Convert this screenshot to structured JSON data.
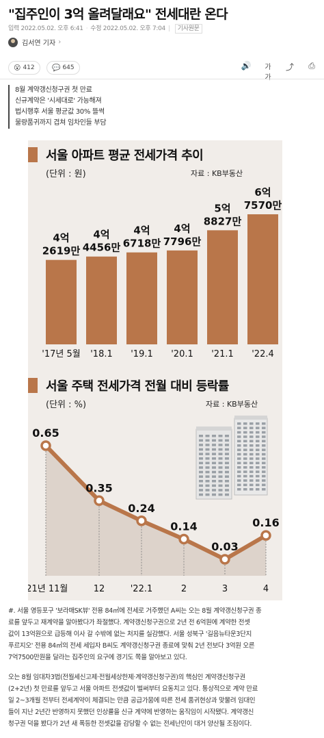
{
  "article": {
    "title": "\"집주인이 3억 올려달래요\" 전세대란 온다",
    "meta": {
      "published": "입력 2022.05.02. 오후 6:41",
      "modified": "수정 2022.05.02. 오후 7:04",
      "tag": "기사원문"
    },
    "reporter": "김서연 기자"
  },
  "actions": {
    "reaction_count": "412",
    "comment_count": "645",
    "icons": [
      "audio-icon",
      "font-size-icon",
      "share-icon",
      "print-icon"
    ],
    "font_size_label": "가가"
  },
  "summary": [
    "8월 계약갱신청구권 첫 만료",
    "신규계약은 '시세대로' 가능해져",
    "법시행후 서울 평균값 30% 뜰썩",
    "물량품귀까지 겹쳐 임차인들 부담"
  ],
  "chart1": {
    "title": "서울 아파트 평균 전세가격 추이",
    "unit": "(단위 : 원)",
    "source": "자료 : KB부동산",
    "bar_color": "#b9764a",
    "chart_data": {
      "type": "bar",
      "categories": [
        "'17년 5월",
        "'18.1",
        "'19.1",
        "'20.1",
        "'21.1",
        "'22.4"
      ],
      "values": [
        426190000,
        444560000,
        467180000,
        477960000,
        588270000,
        675700000
      ],
      "labels_line1": [
        "4억",
        "4억",
        "4억",
        "4억",
        "5억",
        "6억"
      ],
      "labels_line2": [
        "2619만",
        "4456만",
        "6718만",
        "7796만",
        "8827만",
        "7570만"
      ]
    }
  },
  "chart2": {
    "title": "서울 주택 전세가격 전월 대비 등락률",
    "unit": "(단위 : %)",
    "source": "자료 : KB부동산",
    "line_color": "#b9764a",
    "chart_data": {
      "type": "line",
      "categories": [
        "'21년 11월",
        "12",
        "'22.1",
        "2",
        "3",
        "4"
      ],
      "values": [
        0.65,
        0.35,
        0.24,
        0.14,
        0.03,
        0.16
      ],
      "labels": [
        "0.65",
        "0.35",
        "0.24",
        "0.14",
        "0.03",
        "0.16"
      ]
    }
  },
  "caption": {
    "p1": [
      "#. 서울 영등포구 '보라매SK뷰' 전용 84㎡에 전세로 거주했던 A씨는 오는 8월 계약갱신청구권 종",
      "료를 앞두고 재계약을 알아봤다가 좌절했다. 계약갱신청구권으로 2년 전 6억원에 계약한 전셋",
      "값이 13억원으로 급등해 이사 갈 수밖에 없는 처지를 실감했다. 서울 성북구 '길음뉴타운3단지",
      "푸르지오' 전용 84㎡의 전세 세입자 B씨도 계약갱신청구권 종료에 맞춰 2년 전보다 3억원 오른",
      "7억7500만원을 달라는 집주인의 요구에 경기도 쪽을 알아보고 있다."
    ],
    "p2": [
      "오는 8월 임대차3법(전월세신고제·전월세상한제·계약갱신청구권)의 핵심인 계약갱신청구권",
      "(2+2년) 첫 만료를 앞두고 서울 아파트 전셋값이 벌써부터 요동치고 있다. 통상적으로 계약 만료",
      "일 2~3개월 전부터 전세계약이 체결되는 만큼 공급가뭄에 따른 전세 품귀현상과 맞물려 임대인",
      "들이 지난 2년간 반영하지 못했던 인상률을 신규 계약에 반영하는 움직임이 시작됐다. 계약갱신",
      "청구권 덕을 봤다가 2년 새 폭등한 전셋값을 감당할 수 없는 전세난민이 대거 양산될 조짐이다."
    ]
  }
}
